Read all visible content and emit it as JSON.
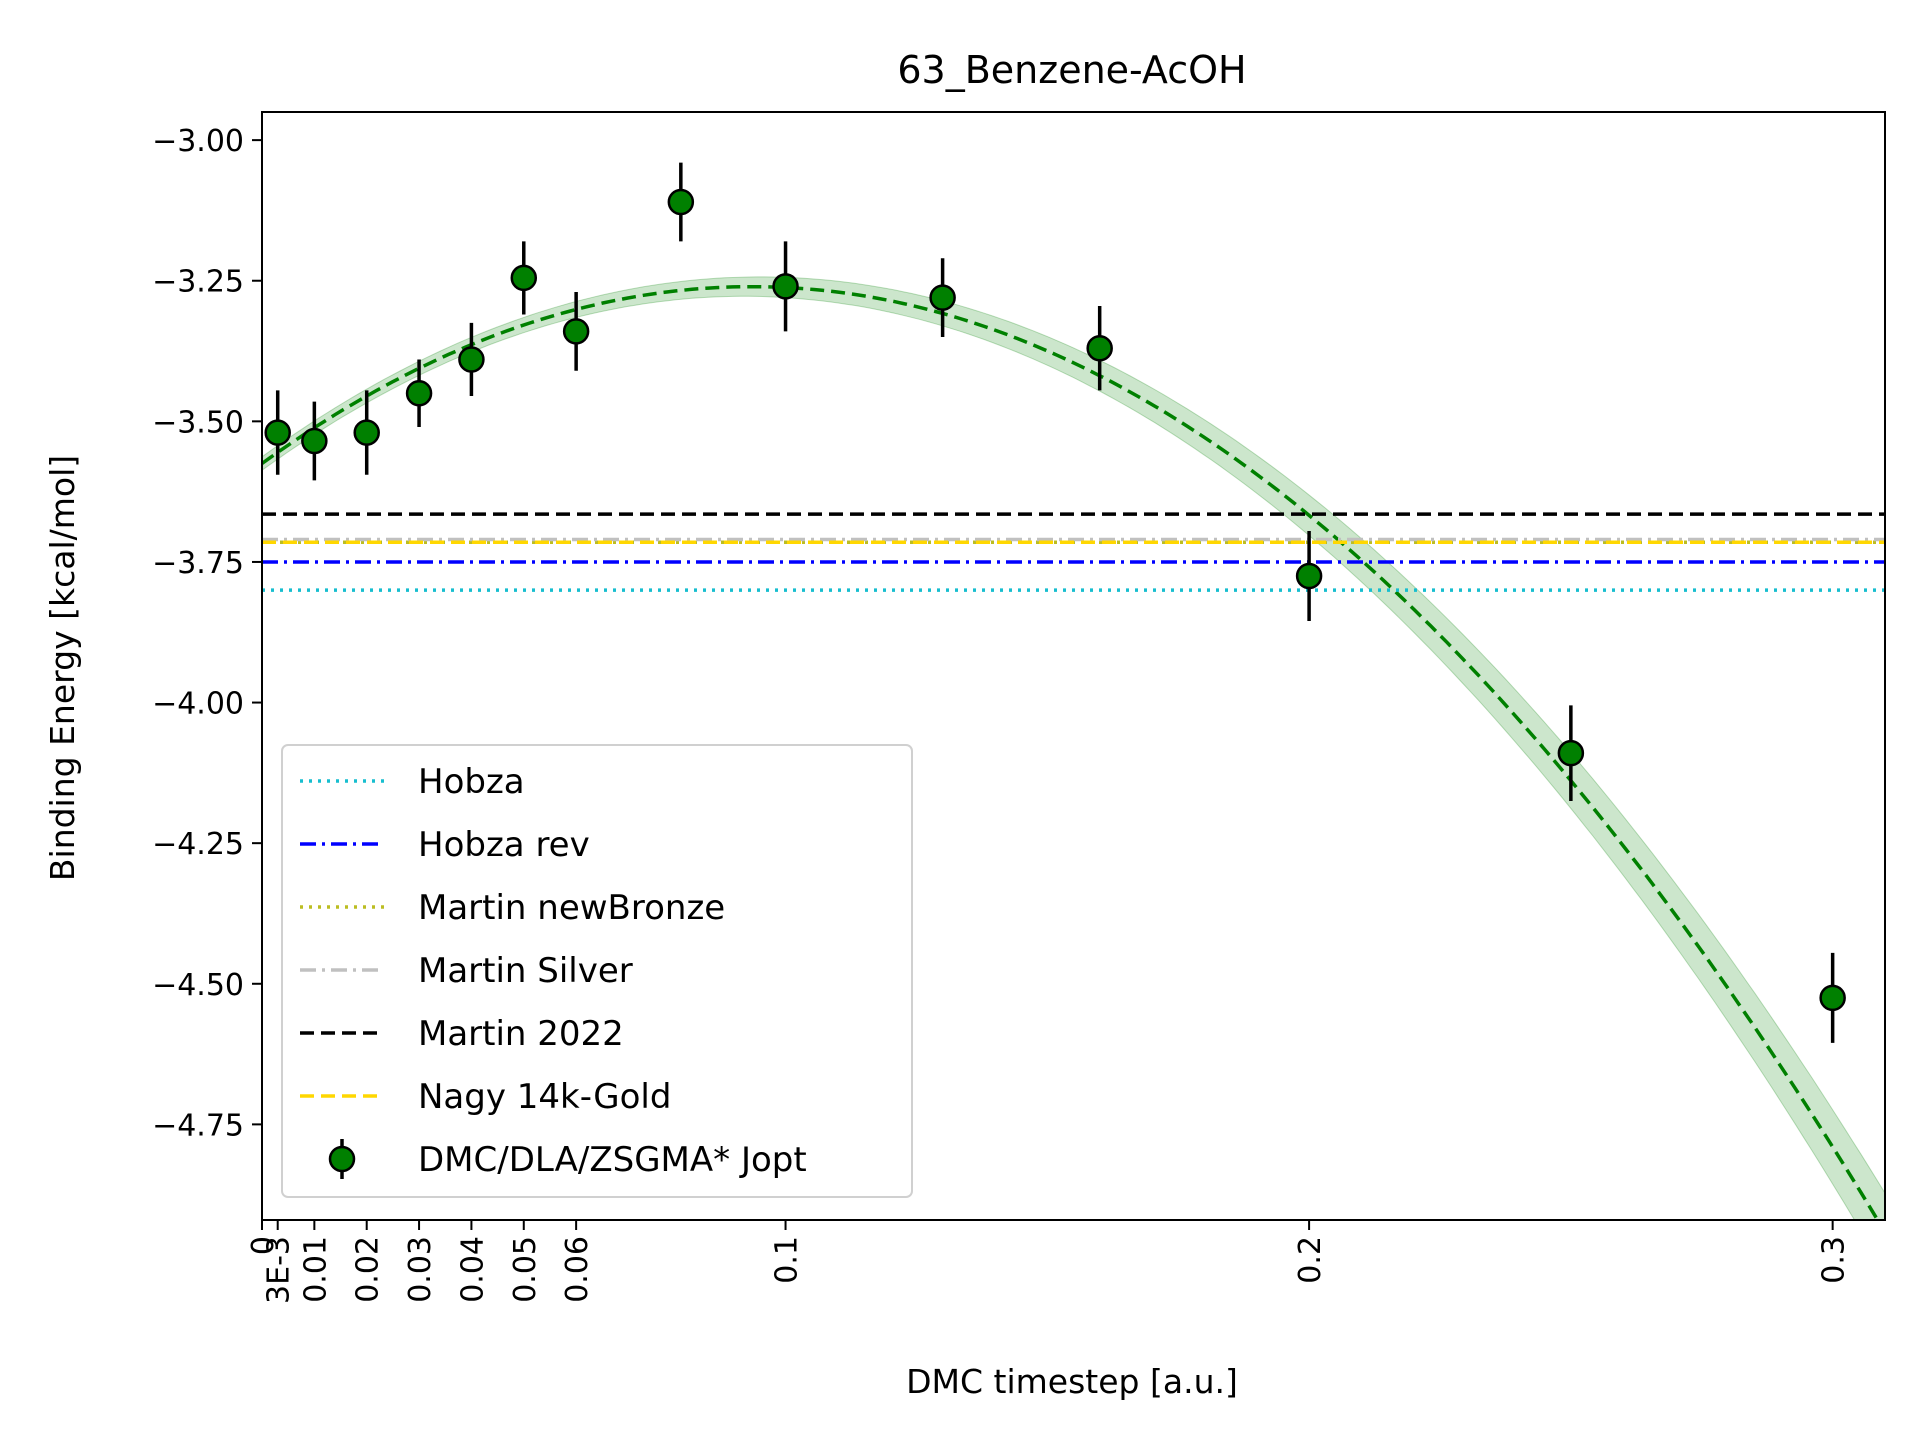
{
  "chart_data": {
    "type": "scatter",
    "title": "63_Benzene-AcOH",
    "xlabel": "DMC timestep [a.u.]",
    "ylabel": "Binding Energy [kcal/mol]",
    "xlim": [
      0,
      0.31
    ],
    "ylim": [
      -4.92,
      -2.95
    ],
    "x_ticks": [
      {
        "value": 0,
        "label": "0"
      },
      {
        "value": 0.003,
        "label": "3E-3"
      },
      {
        "value": 0.01,
        "label": "0.01"
      },
      {
        "value": 0.02,
        "label": "0.02"
      },
      {
        "value": 0.03,
        "label": "0.03"
      },
      {
        "value": 0.04,
        "label": "0.04"
      },
      {
        "value": 0.05,
        "label": "0.05"
      },
      {
        "value": 0.06,
        "label": "0.06"
      },
      {
        "value": 0.1,
        "label": "0.1"
      },
      {
        "value": 0.2,
        "label": "0.2"
      },
      {
        "value": 0.3,
        "label": "0.3"
      }
    ],
    "y_ticks": [
      {
        "value": -3.0,
        "label": "−3.00"
      },
      {
        "value": -3.25,
        "label": "−3.25"
      },
      {
        "value": -3.5,
        "label": "−3.50"
      },
      {
        "value": -3.75,
        "label": "−3.75"
      },
      {
        "value": -4.0,
        "label": "−4.00"
      },
      {
        "value": -4.25,
        "label": "−4.25"
      },
      {
        "value": -4.5,
        "label": "−4.50"
      },
      {
        "value": -4.75,
        "label": "−4.75"
      }
    ],
    "reference_lines": [
      {
        "name": "Hobza",
        "y": -3.8,
        "color": "#17becf",
        "style": "dotted"
      },
      {
        "name": "Hobza rev",
        "y": -3.75,
        "color": "#0000ff",
        "style": "dashdot"
      },
      {
        "name": "Martin newBronze",
        "y": -3.715,
        "color": "#bcbd22",
        "style": "dotted"
      },
      {
        "name": "Martin Silver",
        "y": -3.71,
        "color": "#c0c0c0",
        "style": "dashdot"
      },
      {
        "name": "Martin 2022",
        "y": -3.665,
        "color": "#000000",
        "style": "dashed"
      },
      {
        "name": "Nagy 14k-Gold",
        "y": -3.715,
        "color": "#ffd700",
        "style": "dashed"
      }
    ],
    "series": [
      {
        "name": "DMC/DLA/ZSGMA* Jopt",
        "color": "#008000",
        "x": [
          0.003,
          0.01,
          0.02,
          0.03,
          0.04,
          0.05,
          0.06,
          0.08,
          0.1,
          0.13,
          0.16,
          0.2,
          0.25,
          0.3
        ],
        "y": [
          -3.52,
          -3.535,
          -3.52,
          -3.45,
          -3.39,
          -3.245,
          -3.34,
          -3.11,
          -3.26,
          -3.28,
          -3.37,
          -3.775,
          -4.09,
          -4.525
        ],
        "yerr": [
          0.075,
          0.07,
          0.075,
          0.06,
          0.065,
          0.065,
          0.07,
          0.07,
          0.08,
          0.07,
          0.075,
          0.08,
          0.085,
          0.08
        ]
      }
    ],
    "fit": {
      "color": "#008000",
      "style": "dashed",
      "band_color": "#008000",
      "band_halfwidth_at_zero": 0.012,
      "band_halfwidth_slope": 0.2,
      "coefficients": [
        -3.575,
        6.72,
        -35.9
      ]
    },
    "legend": {
      "location": "lower-left",
      "entries": [
        "Hobza",
        "Hobza rev",
        "Martin newBronze",
        "Martin Silver",
        "Martin 2022",
        "Nagy 14k-Gold",
        "DMC/DLA/ZSGMA* Jopt"
      ]
    },
    "grid": false
  }
}
